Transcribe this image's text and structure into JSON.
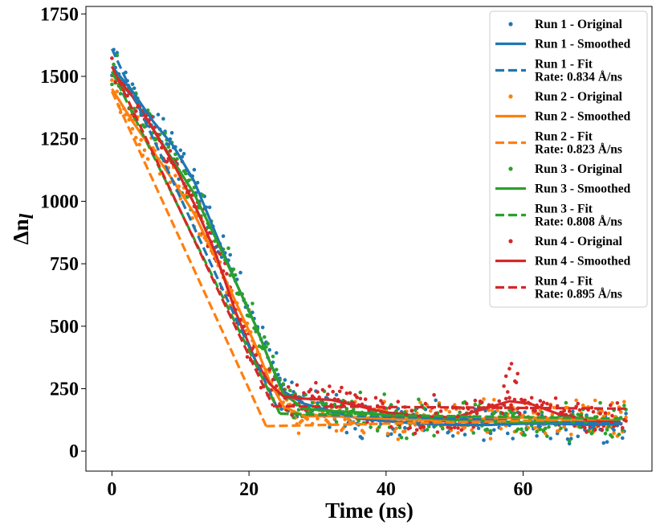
{
  "chart_data": {
    "type": "line",
    "title": "",
    "xlabel": "Time (ns)",
    "ylabel_main": "Δn",
    "ylabel_sub": "l",
    "xlim": [
      -3.8,
      78.8
    ],
    "ylim": [
      -80,
      1780
    ],
    "xticks": [
      0,
      20,
      40,
      60
    ],
    "yticks": [
      0,
      250,
      500,
      750,
      1000,
      1250,
      1500,
      1750
    ],
    "grid": false,
    "legend_position": "top-right",
    "series": [
      {
        "name": "Run 1",
        "color": "#1f77b4",
        "original_label": "Run 1 - Original",
        "smoothed_label": "Run 1 - Smoothed",
        "fit_label": "Run 1 - Fit",
        "rate_label": "Rate: 0.834 Å/ns",
        "fit": {
          "x0": 0,
          "y0": 1610,
          "x1": 24.5,
          "y1": 150
        },
        "smoothed": [
          [
            0,
            1540
          ],
          [
            3,
            1440
          ],
          [
            6,
            1320
          ],
          [
            9,
            1220
          ],
          [
            12,
            1080
          ],
          [
            15,
            880
          ],
          [
            18,
            680
          ],
          [
            21,
            500
          ],
          [
            23,
            360
          ],
          [
            25,
            240
          ],
          [
            28,
            190
          ],
          [
            32,
            160
          ],
          [
            36,
            130
          ],
          [
            40,
            120
          ],
          [
            45,
            110
          ],
          [
            50,
            105
          ],
          [
            55,
            105
          ],
          [
            60,
            110
          ],
          [
            65,
            110
          ],
          [
            70,
            105
          ],
          [
            74,
            110
          ]
        ],
        "plateau": 110,
        "noise": 55,
        "seed": 11
      },
      {
        "name": "Run 2",
        "color": "#ff7f0e",
        "original_label": "Run 2 - Original",
        "smoothed_label": "Run 2 - Smoothed",
        "fit_label": "Run 2 - Fit",
        "rate_label": "Rate: 0.823 Å/ns",
        "fit": {
          "x0": 0,
          "y0": 1440,
          "x1": 22.5,
          "y1": 100
        },
        "smoothed": [
          [
            0,
            1450
          ],
          [
            3,
            1320
          ],
          [
            6,
            1200
          ],
          [
            9,
            1080
          ],
          [
            12,
            950
          ],
          [
            15,
            780
          ],
          [
            18,
            600
          ],
          [
            21,
            420
          ],
          [
            23,
            280
          ],
          [
            25,
            180
          ],
          [
            28,
            140
          ],
          [
            32,
            140
          ],
          [
            36,
            135
          ],
          [
            40,
            130
          ],
          [
            45,
            125
          ],
          [
            50,
            125
          ],
          [
            55,
            130
          ],
          [
            60,
            135
          ],
          [
            65,
            130
          ],
          [
            70,
            125
          ],
          [
            74,
            125
          ]
        ],
        "plateau": 130,
        "noise": 55,
        "seed": 23
      },
      {
        "name": "Run 3",
        "color": "#2ca02c",
        "original_label": "Run 3 - Original",
        "smoothed_label": "Run 3 - Smoothed",
        "fit_label": "Run 3 - Fit",
        "rate_label": "Rate: 0.808 Å/ns",
        "fit": {
          "x0": 0,
          "y0": 1520,
          "x1": 24.5,
          "y1": 150
        },
        "smoothed": [
          [
            0,
            1510
          ],
          [
            3,
            1420
          ],
          [
            6,
            1290
          ],
          [
            9,
            1160
          ],
          [
            12,
            1030
          ],
          [
            15,
            860
          ],
          [
            18,
            680
          ],
          [
            21,
            500
          ],
          [
            23,
            360
          ],
          [
            25,
            230
          ],
          [
            28,
            170
          ],
          [
            32,
            160
          ],
          [
            36,
            155
          ],
          [
            40,
            145
          ],
          [
            45,
            135
          ],
          [
            50,
            125
          ],
          [
            55,
            120
          ],
          [
            60,
            115
          ],
          [
            65,
            115
          ],
          [
            70,
            115
          ],
          [
            74,
            120
          ]
        ],
        "plateau": 130,
        "noise": 55,
        "seed": 37
      },
      {
        "name": "Run 4",
        "color": "#d62728",
        "original_label": "Run 4 - Original",
        "smoothed_label": "Run 4 - Smoothed",
        "fit_label": "Run 4 - Fit",
        "rate_label": "Rate: 0.895 Å/ns",
        "fit": {
          "x0": 0,
          "y0": 1540,
          "x1": 23.5,
          "y1": 180
        },
        "smoothed": [
          [
            0,
            1520
          ],
          [
            3,
            1420
          ],
          [
            6,
            1290
          ],
          [
            9,
            1150
          ],
          [
            12,
            990
          ],
          [
            15,
            800
          ],
          [
            18,
            560
          ],
          [
            21,
            360
          ],
          [
            23,
            270
          ],
          [
            25,
            220
          ],
          [
            28,
            210
          ],
          [
            32,
            205
          ],
          [
            36,
            180
          ],
          [
            40,
            155
          ],
          [
            45,
            140
          ],
          [
            50,
            135
          ],
          [
            55,
            175
          ],
          [
            58,
            200
          ],
          [
            61,
            190
          ],
          [
            65,
            150
          ],
          [
            70,
            120
          ],
          [
            74,
            115
          ]
        ],
        "plateau": 170,
        "noise": 55,
        "seed": 53
      }
    ]
  }
}
